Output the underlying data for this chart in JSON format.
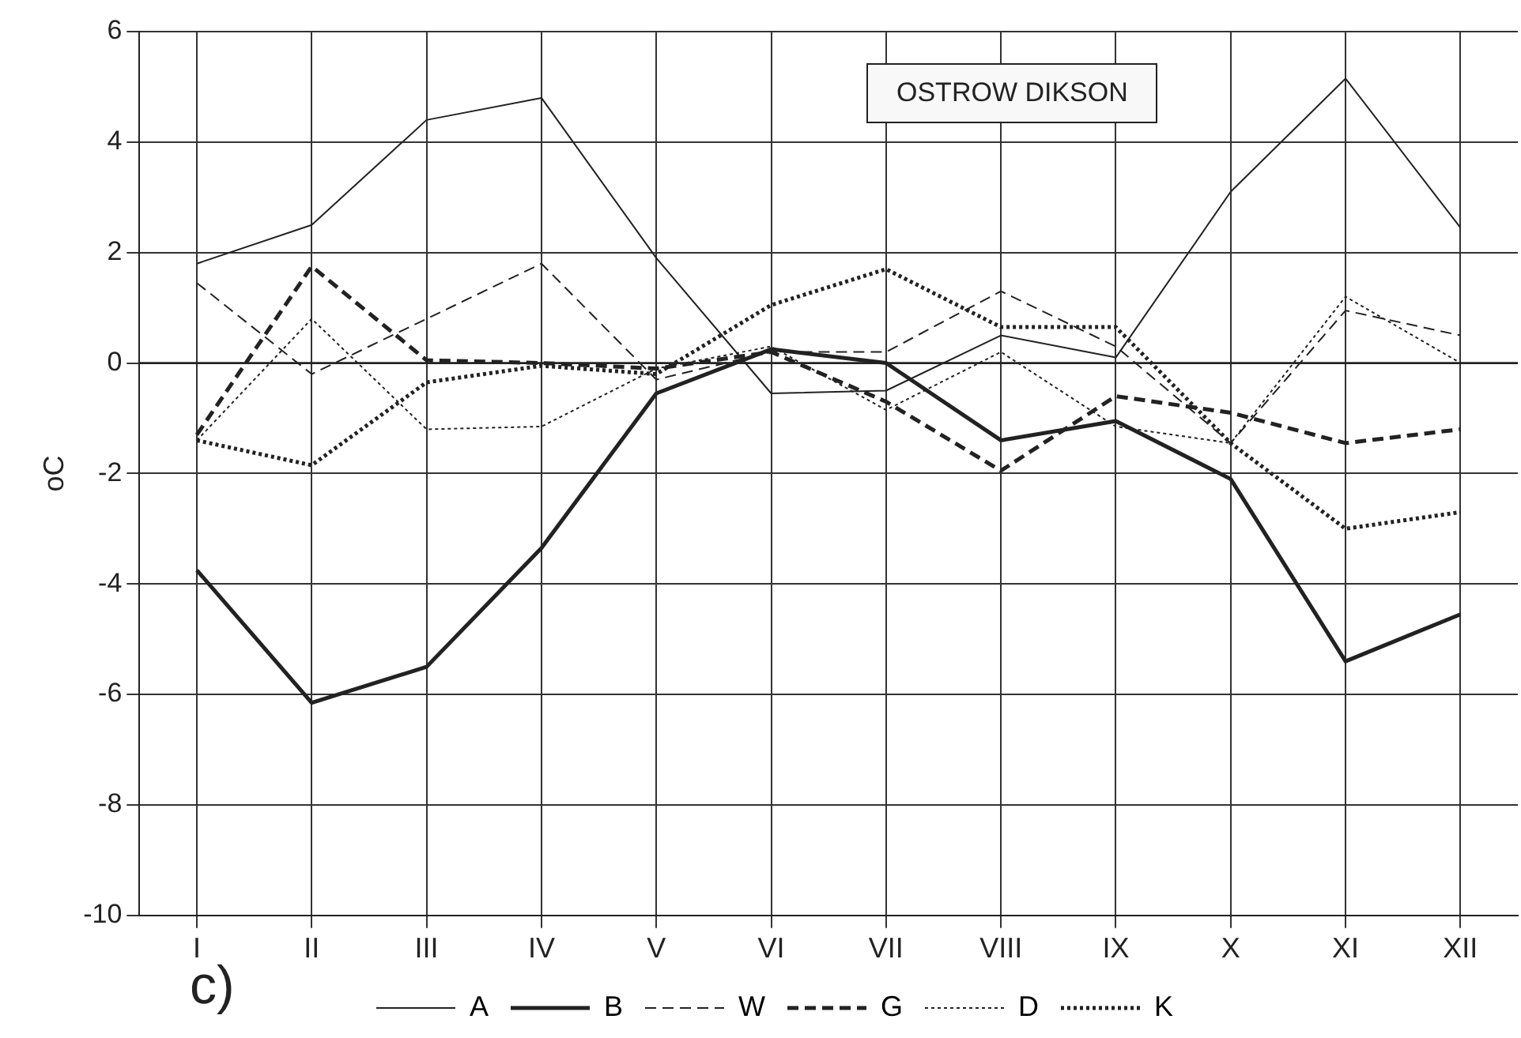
{
  "chart_data": {
    "type": "line",
    "title": "OSTROW DIKSON",
    "ylabel": "oC",
    "annotations": [
      "c)"
    ],
    "categories": [
      "I",
      "II",
      "III",
      "IV",
      "V",
      "VI",
      "VII",
      "VIII",
      "IX",
      "X",
      "XI",
      "XII"
    ],
    "ylim": [
      -10,
      6
    ],
    "yticks": [
      -10,
      -8,
      -6,
      -4,
      -2,
      0,
      2,
      4,
      6
    ],
    "grid": true,
    "legend": "bottom",
    "marker": "none",
    "ref_lines": [
      {
        "axis": "y",
        "value": 0,
        "color": "#222222",
        "line_style": "solid"
      }
    ],
    "series": [
      {
        "name": "A",
        "color": "#222222",
        "line_style": "solid",
        "values": [
          1.8,
          2.5,
          4.4,
          4.8,
          1.9,
          -0.55,
          -0.5,
          0.5,
          0.1,
          3.1,
          5.15,
          2.45
        ]
      },
      {
        "name": "B",
        "color": "#222222",
        "line_style": "solid",
        "values": [
          -3.75,
          -6.15,
          -5.5,
          -3.35,
          -0.55,
          0.25,
          0,
          -1.4,
          -1.05,
          -2.1,
          -5.4,
          -4.55
        ]
      },
      {
        "name": "W",
        "color": "#222222",
        "line_style": "dashed",
        "values": [
          1.45,
          -0.2,
          0.8,
          1.8,
          -0.3,
          0.2,
          0.2,
          1.3,
          0.3,
          -1.45,
          0.95,
          0.5
        ]
      },
      {
        "name": "G",
        "color": "#222222",
        "line_style": "dashed",
        "values": [
          -1.3,
          1.75,
          0.05,
          0,
          -0.1,
          0.2,
          -0.7,
          -1.95,
          -0.6,
          -0.9,
          -1.45,
          -1.2
        ]
      },
      {
        "name": "D",
        "color": "#222222",
        "line_style": "dotted",
        "values": [
          -1.4,
          0.8,
          -1.2,
          -1.15,
          -0.1,
          0.3,
          -0.85,
          0.2,
          -1.15,
          -1.45,
          1.2,
          0
        ]
      },
      {
        "name": "K",
        "color": "#222222",
        "line_style": "dotted",
        "values": [
          -1.4,
          -1.85,
          -0.35,
          -0.05,
          -0.2,
          1.05,
          1.7,
          0.65,
          0.65,
          -1.45,
          -3.0,
          -2.7
        ]
      }
    ]
  }
}
